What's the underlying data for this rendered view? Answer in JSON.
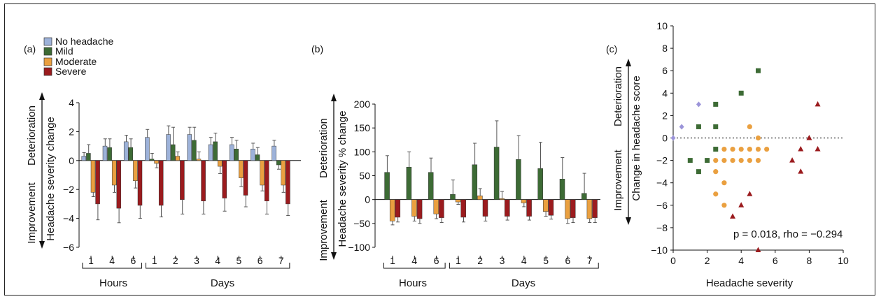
{
  "legend": [
    {
      "label": "No headache",
      "color": "#9db2d9"
    },
    {
      "label": "Mild",
      "color": "#3d6b35"
    },
    {
      "label": "Moderate",
      "color": "#eaa040"
    },
    {
      "label": "Severe",
      "color": "#9b1b1e"
    }
  ],
  "groups": {
    "hours": "Hours",
    "days": "Days"
  },
  "direction": {
    "improvement": "Improvement",
    "deterioration": "Deterioration"
  },
  "panel_a": {
    "label": "(a)",
    "ylabel": "Headache severity change"
  },
  "panel_b": {
    "label": "(b)",
    "ylabel": "Headache severity % change"
  },
  "panel_c": {
    "label": "(c)",
    "ylabel": "Change in headache score",
    "xlabel": "Headache severity",
    "stat": "p = 0.018, rho = −0.294"
  },
  "chart_data": [
    {
      "type": "bar",
      "categories": [
        "1",
        "4",
        "6",
        "1",
        "2",
        "3",
        "4",
        "5",
        "6",
        "7"
      ],
      "category_groups": [
        {
          "name": "Hours",
          "range": [
            0,
            2
          ]
        },
        {
          "name": "Days",
          "range": [
            3,
            9
          ]
        }
      ],
      "ylabel": "Headache severity change",
      "ylim": [
        -6,
        4
      ],
      "yticks": [
        -6,
        -4,
        -2,
        0,
        2,
        4
      ],
      "series": [
        {
          "name": "No headache",
          "color": "#9db2d9",
          "values": [
            0.3,
            1.0,
            1.3,
            1.6,
            1.8,
            1.8,
            1.1,
            1.1,
            0.8,
            1.0
          ],
          "errors": [
            0.25,
            0.5,
            0.45,
            0.55,
            0.6,
            0.5,
            0.5,
            0.5,
            0.4,
            0.4
          ]
        },
        {
          "name": "Mild",
          "color": "#3d6b35",
          "values": [
            0.5,
            0.9,
            0.9,
            0.1,
            1.1,
            1.4,
            1.3,
            0.8,
            0.4,
            -0.3
          ],
          "errors": [
            0.6,
            0.6,
            0.6,
            0.4,
            1.2,
            0.9,
            0.6,
            0.6,
            0.5,
            0.3
          ]
        },
        {
          "name": "Moderate",
          "color": "#eaa040",
          "values": [
            -2.2,
            -1.7,
            -1.4,
            -0.2,
            0.3,
            0.1,
            -0.4,
            -1.2,
            -1.7,
            -1.7
          ],
          "errors": [
            0.3,
            0.5,
            0.5,
            0.3,
            0.3,
            0.5,
            0.5,
            0.6,
            0.4,
            0.5
          ]
        },
        {
          "name": "Severe",
          "color": "#9b1b1e",
          "values": [
            -3.0,
            -3.3,
            -3.1,
            -3.1,
            -2.7,
            -2.8,
            -2.6,
            -2.4,
            -2.8,
            -3.0
          ],
          "errors": [
            1.1,
            1.0,
            0.9,
            0.8,
            1.0,
            0.9,
            0.9,
            0.8,
            0.9,
            0.8
          ]
        }
      ]
    },
    {
      "type": "bar",
      "categories": [
        "1",
        "4",
        "6",
        "1",
        "2",
        "3",
        "4",
        "5",
        "6",
        "7"
      ],
      "category_groups": [
        {
          "name": "Hours",
          "range": [
            0,
            2
          ]
        },
        {
          "name": "Days",
          "range": [
            3,
            9
          ]
        }
      ],
      "ylabel": "Headache severity % change",
      "ylim": [
        -100,
        200
      ],
      "yticks": [
        -100,
        -50,
        0,
        50,
        100,
        150,
        200
      ],
      "series": [
        {
          "name": "Mild",
          "color": "#3d6b35",
          "values": [
            57,
            68,
            57,
            11,
            73,
            110,
            84,
            65,
            43,
            13
          ],
          "errors": [
            35,
            32,
            30,
            30,
            45,
            55,
            50,
            55,
            45,
            42
          ]
        },
        {
          "name": "Moderate",
          "color": "#eaa040",
          "values": [
            -45,
            -35,
            -30,
            -5,
            8,
            2,
            -7,
            -25,
            -40,
            -40
          ],
          "errors": [
            8,
            10,
            10,
            5,
            15,
            15,
            8,
            10,
            10,
            8
          ]
        },
        {
          "name": "Severe",
          "color": "#9b1b1e",
          "values": [
            -37,
            -40,
            -38,
            -37,
            -35,
            -35,
            -35,
            -33,
            -38,
            -38
          ],
          "errors": [
            10,
            10,
            10,
            10,
            10,
            8,
            8,
            8,
            10,
            10
          ]
        }
      ]
    },
    {
      "type": "scatter",
      "xlabel": "Headache severity",
      "ylabel": "Change in headache score",
      "xlim": [
        0,
        10
      ],
      "ylim": [
        -10,
        10
      ],
      "xticks": [
        0,
        2,
        4,
        6,
        8,
        10
      ],
      "yticks": [
        -10,
        -8,
        -6,
        -4,
        -2,
        0,
        2,
        4,
        6,
        8,
        10
      ],
      "reference_line": 0,
      "series": [
        {
          "name": "No headache",
          "color": "#9b94d9",
          "marker": "diamond",
          "points": [
            [
              0,
              0
            ],
            [
              0.5,
              1
            ],
            [
              1.5,
              3
            ]
          ]
        },
        {
          "name": "Mild",
          "color": "#3d6b35",
          "marker": "square",
          "points": [
            [
              1,
              -2
            ],
            [
              1.5,
              1
            ],
            [
              1.5,
              -3
            ],
            [
              2,
              -2
            ],
            [
              2.5,
              3
            ],
            [
              2.5,
              1
            ],
            [
              2.5,
              -1
            ],
            [
              4,
              4
            ],
            [
              5,
              6
            ]
          ]
        },
        {
          "name": "Moderate",
          "color": "#eaa040",
          "marker": "circle",
          "points": [
            [
              2.5,
              -2
            ],
            [
              2.5,
              -3
            ],
            [
              2.5,
              -5
            ],
            [
              3,
              -1
            ],
            [
              3,
              -2
            ],
            [
              3,
              -4
            ],
            [
              3,
              -6
            ],
            [
              3.5,
              -1
            ],
            [
              3.5,
              -2
            ],
            [
              4,
              -1
            ],
            [
              4,
              -2
            ],
            [
              4.5,
              1
            ],
            [
              4.5,
              -1
            ],
            [
              4.5,
              -2
            ],
            [
              5,
              0
            ],
            [
              5,
              -1
            ],
            [
              5,
              -2
            ],
            [
              5.5,
              -1
            ]
          ]
        },
        {
          "name": "Severe",
          "color": "#9b1b1e",
          "marker": "triangle",
          "points": [
            [
              3.5,
              -7
            ],
            [
              4,
              -6
            ],
            [
              4.5,
              -5
            ],
            [
              5,
              -10
            ],
            [
              7,
              -2
            ],
            [
              7.5,
              -1
            ],
            [
              7.5,
              -3
            ],
            [
              8,
              0
            ],
            [
              8.5,
              3
            ],
            [
              8.5,
              -1
            ]
          ]
        }
      ]
    }
  ]
}
